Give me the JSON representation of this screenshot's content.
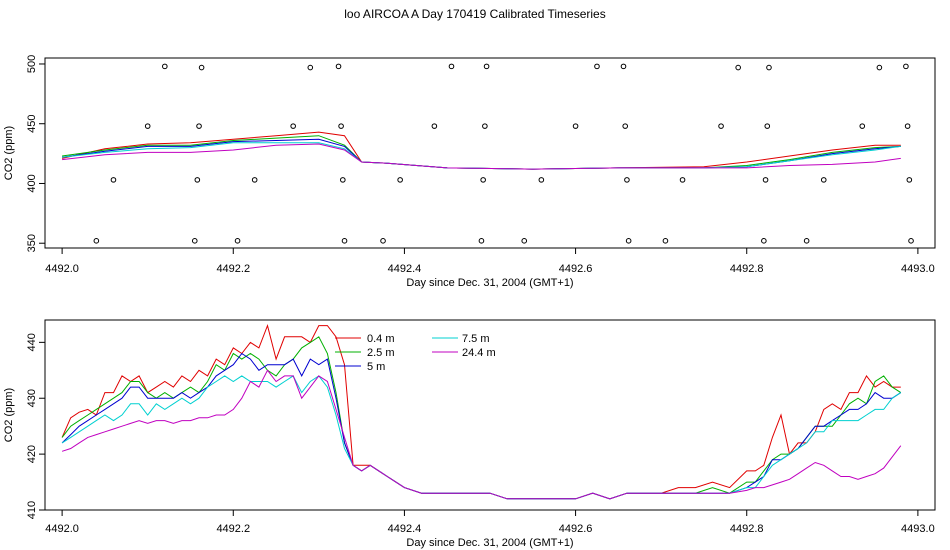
{
  "page_title": "loo AIRCOA A  Day 170419  Calibrated Timeseries",
  "chart_data": [
    {
      "type": "line",
      "xlabel": "Day since Dec. 31, 2004 (GMT+1)",
      "ylabel": "CO2 (ppm)",
      "xlim": [
        4491.98,
        4493.02
      ],
      "ylim": [
        346,
        505
      ],
      "xticks": [
        "4492.0",
        "4492.2",
        "4492.4",
        "4492.6",
        "4492.8",
        "4493.0"
      ],
      "yticks": [
        "350",
        "400",
        "450",
        "500"
      ],
      "grid": false,
      "x": [
        4492.0,
        4492.05,
        4492.1,
        4492.15,
        4492.2,
        4492.25,
        4492.3,
        4492.33,
        4492.35,
        4492.38,
        4492.45,
        4492.55,
        4492.65,
        4492.75,
        4492.8,
        4492.85,
        4492.9,
        4492.95,
        4492.98
      ],
      "series": [
        {
          "name": "0.4 m",
          "color": "#e00000",
          "values": [
            421,
            429,
            433,
            434,
            437,
            440,
            443,
            440,
            418,
            417,
            413,
            412,
            413,
            414,
            418,
            423,
            428,
            432,
            432
          ]
        },
        {
          "name": "2.5 m",
          "color": "#00b000",
          "values": [
            423,
            428,
            432,
            432,
            436,
            438,
            440,
            432,
            418,
            417,
            413,
            412,
            413,
            413,
            415,
            420,
            426,
            430,
            431
          ]
        },
        {
          "name": "5 m",
          "color": "#0000d0",
          "values": [
            422,
            427,
            431,
            431,
            435,
            436,
            437,
            431,
            418,
            417,
            413,
            412,
            413,
            413,
            414,
            419,
            425,
            429,
            431
          ]
        },
        {
          "name": "7.5 m",
          "color": "#00d0d0",
          "values": [
            422,
            426,
            429,
            430,
            434,
            434,
            434,
            429,
            418,
            417,
            413,
            412,
            413,
            413,
            414,
            419,
            424,
            428,
            431
          ]
        },
        {
          "name": "24.4 m",
          "color": "#c000c0",
          "values": [
            420,
            424,
            426,
            426,
            428,
            432,
            433,
            428,
            418,
            417,
            413,
            412,
            413,
            413,
            413,
            415,
            416,
            418,
            421
          ]
        }
      ],
      "scatter_points": [
        {
          "x": 4492.04,
          "y": 352
        },
        {
          "x": 4492.06,
          "y": 403
        },
        {
          "x": 4492.1,
          "y": 448
        },
        {
          "x": 4492.12,
          "y": 498
        },
        {
          "x": 4492.155,
          "y": 352
        },
        {
          "x": 4492.158,
          "y": 403
        },
        {
          "x": 4492.16,
          "y": 448
        },
        {
          "x": 4492.163,
          "y": 497
        },
        {
          "x": 4492.205,
          "y": 352
        },
        {
          "x": 4492.225,
          "y": 403
        },
        {
          "x": 4492.27,
          "y": 448
        },
        {
          "x": 4492.29,
          "y": 497
        },
        {
          "x": 4492.323,
          "y": 498
        },
        {
          "x": 4492.326,
          "y": 448
        },
        {
          "x": 4492.328,
          "y": 403
        },
        {
          "x": 4492.33,
          "y": 352
        },
        {
          "x": 4492.375,
          "y": 352
        },
        {
          "x": 4492.395,
          "y": 403
        },
        {
          "x": 4492.435,
          "y": 448
        },
        {
          "x": 4492.455,
          "y": 498
        },
        {
          "x": 4492.49,
          "y": 352
        },
        {
          "x": 4492.492,
          "y": 403
        },
        {
          "x": 4492.494,
          "y": 448
        },
        {
          "x": 4492.496,
          "y": 498
        },
        {
          "x": 4492.54,
          "y": 352
        },
        {
          "x": 4492.56,
          "y": 403
        },
        {
          "x": 4492.6,
          "y": 448
        },
        {
          "x": 4492.625,
          "y": 498
        },
        {
          "x": 4492.656,
          "y": 498
        },
        {
          "x": 4492.658,
          "y": 448
        },
        {
          "x": 4492.66,
          "y": 403
        },
        {
          "x": 4492.662,
          "y": 352
        },
        {
          "x": 4492.705,
          "y": 352
        },
        {
          "x": 4492.725,
          "y": 403
        },
        {
          "x": 4492.77,
          "y": 448
        },
        {
          "x": 4492.79,
          "y": 497
        },
        {
          "x": 4492.82,
          "y": 352
        },
        {
          "x": 4492.822,
          "y": 403
        },
        {
          "x": 4492.824,
          "y": 448
        },
        {
          "x": 4492.826,
          "y": 497
        },
        {
          "x": 4492.87,
          "y": 352
        },
        {
          "x": 4492.89,
          "y": 403
        },
        {
          "x": 4492.935,
          "y": 448
        },
        {
          "x": 4492.955,
          "y": 497
        },
        {
          "x": 4492.986,
          "y": 498
        },
        {
          "x": 4492.988,
          "y": 448
        },
        {
          "x": 4492.99,
          "y": 403
        },
        {
          "x": 4492.992,
          "y": 352
        }
      ]
    },
    {
      "type": "line",
      "xlabel": "Day since Dec. 31, 2004 (GMT+1)",
      "ylabel": "CO2 (ppm)",
      "xlim": [
        4491.98,
        4493.02
      ],
      "ylim": [
        410,
        444
      ],
      "xticks": [
        "4492.0",
        "4492.2",
        "4492.4",
        "4492.6",
        "4492.8",
        "4493.0"
      ],
      "yticks": [
        "410",
        "420",
        "430",
        "440"
      ],
      "grid": false,
      "legend": "top-center",
      "x": [
        4492.0,
        4492.01,
        4492.02,
        4492.03,
        4492.04,
        4492.05,
        4492.06,
        4492.07,
        4492.08,
        4492.09,
        4492.1,
        4492.11,
        4492.12,
        4492.13,
        4492.14,
        4492.15,
        4492.16,
        4492.17,
        4492.18,
        4492.19,
        4492.2,
        4492.21,
        4492.22,
        4492.23,
        4492.24,
        4492.25,
        4492.26,
        4492.27,
        4492.28,
        4492.29,
        4492.3,
        4492.31,
        4492.32,
        4492.33,
        4492.34,
        4492.35,
        4492.36,
        4492.37,
        4492.38,
        4492.39,
        4492.4,
        4492.42,
        4492.44,
        4492.46,
        4492.48,
        4492.5,
        4492.52,
        4492.54,
        4492.56,
        4492.58,
        4492.6,
        4492.62,
        4492.64,
        4492.66,
        4492.68,
        4492.7,
        4492.72,
        4492.74,
        4492.76,
        4492.78,
        4492.8,
        4492.81,
        4492.82,
        4492.83,
        4492.84,
        4492.85,
        4492.86,
        4492.87,
        4492.88,
        4492.89,
        4492.9,
        4492.91,
        4492.92,
        4492.93,
        4492.94,
        4492.95,
        4492.96,
        4492.97,
        4492.98
      ],
      "series": [
        {
          "name": "0.4 m",
          "color": "#e00000",
          "values": [
            423,
            426.5,
            427.5,
            428,
            427,
            431,
            431,
            434,
            433,
            434,
            431,
            432,
            433,
            432,
            434,
            433,
            435,
            434,
            437,
            436,
            439,
            438,
            440,
            439,
            443,
            437,
            441,
            441,
            441,
            440,
            443,
            443,
            441,
            436,
            418,
            418,
            418,
            417,
            416,
            415,
            414,
            413,
            413,
            413,
            413,
            413,
            412,
            412,
            412,
            412,
            412,
            413,
            412,
            413,
            413,
            413,
            414,
            414,
            415,
            414,
            417,
            417,
            418,
            423,
            427,
            420,
            422,
            422,
            424,
            428,
            429,
            428,
            431,
            431,
            434,
            432,
            433,
            432,
            432
          ]
        },
        {
          "name": "2.5 m",
          "color": "#00b000",
          "values": [
            423,
            425,
            426,
            427,
            428,
            429,
            430,
            431,
            433,
            433,
            431,
            430,
            431,
            430,
            431,
            432,
            431,
            433,
            436,
            435,
            438,
            437,
            438,
            437,
            435,
            434,
            436,
            437,
            439,
            440,
            441,
            438,
            431,
            422,
            418,
            417,
            418,
            417,
            416,
            415,
            414,
            413,
            413,
            413,
            413,
            413,
            412,
            412,
            412,
            412,
            412,
            413,
            412,
            413,
            413,
            413,
            413,
            413,
            414,
            413,
            415,
            415,
            417,
            419,
            420,
            420,
            421,
            423,
            425,
            425,
            425,
            427,
            429,
            430,
            429,
            433,
            434,
            432,
            431
          ]
        },
        {
          "name": "5 m",
          "color": "#0000d0",
          "values": [
            422,
            423.5,
            425,
            426,
            427,
            428,
            429,
            430,
            432,
            432,
            430,
            430,
            430,
            430,
            431,
            430,
            431,
            432,
            434,
            435,
            436,
            438,
            437,
            435,
            436,
            436,
            436,
            437,
            434,
            437,
            436,
            437,
            430,
            422,
            418,
            417,
            418,
            417,
            416,
            415,
            414,
            413,
            413,
            413,
            413,
            413,
            412,
            412,
            412,
            412,
            412,
            413,
            412,
            413,
            413,
            413,
            413,
            413,
            413,
            413,
            414,
            415,
            416,
            419,
            419,
            420,
            421,
            423,
            425,
            425,
            426,
            427,
            428,
            428,
            429,
            431,
            430,
            430,
            431
          ]
        },
        {
          "name": "7.5 m",
          "color": "#00d0d0",
          "values": [
            422,
            423,
            424,
            425,
            426,
            427,
            426,
            427,
            429,
            429,
            427,
            429,
            428,
            429,
            430,
            429,
            430,
            432,
            433,
            434,
            433,
            434,
            433,
            433,
            433,
            432,
            433,
            434,
            431,
            433,
            434,
            432,
            427,
            421,
            418,
            417,
            418,
            417,
            416,
            415,
            414,
            413,
            413,
            413,
            413,
            413,
            412,
            412,
            412,
            412,
            412,
            413,
            412,
            413,
            413,
            413,
            413,
            413,
            413,
            413,
            414,
            414,
            416,
            418,
            419,
            420,
            421,
            422,
            424,
            424,
            426,
            426,
            426,
            426,
            427,
            428,
            428,
            430,
            431
          ]
        },
        {
          "name": "24.4 m",
          "color": "#c000c0",
          "values": [
            420.5,
            421,
            422,
            423,
            423.5,
            424,
            424.5,
            425,
            425.5,
            426,
            425.5,
            426,
            426,
            425.5,
            426,
            426,
            426.5,
            426.5,
            427,
            427,
            428,
            430,
            433,
            432,
            435,
            433,
            434,
            434,
            430,
            432,
            434,
            433,
            428,
            423,
            418,
            417,
            418,
            417,
            416,
            415,
            414,
            413,
            413,
            413,
            413,
            413,
            412,
            412,
            412,
            412,
            412,
            413,
            412,
            413,
            413,
            413,
            413,
            413,
            413,
            413,
            413.5,
            414,
            414,
            414.5,
            415,
            415.5,
            416.5,
            417.5,
            418.5,
            418,
            417,
            416,
            416,
            415.5,
            416,
            416.5,
            417.5,
            419.5,
            421.5
          ]
        }
      ]
    }
  ]
}
